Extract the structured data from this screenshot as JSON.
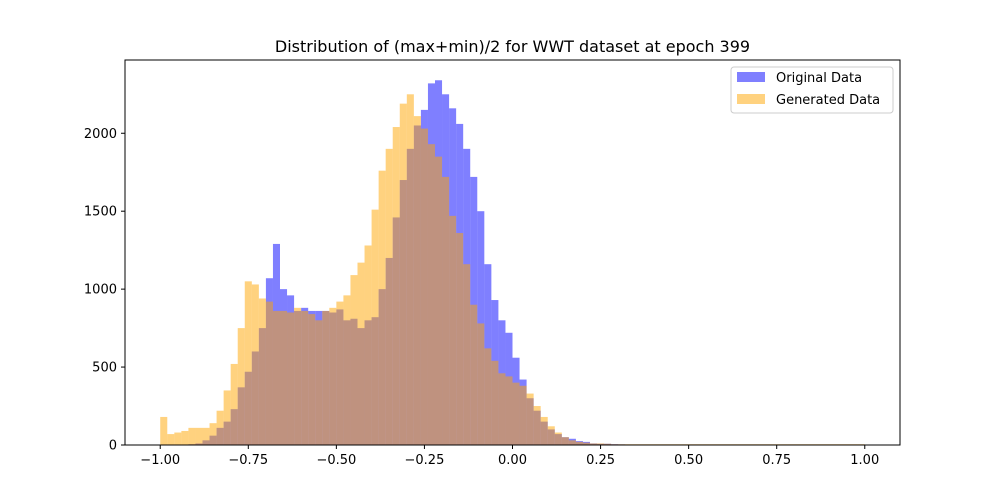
{
  "chart_data": {
    "type": "histogram",
    "title": "Distribution of (max+min)/2 for WWT dataset at epoch 399",
    "xlabel": "",
    "ylabel": "",
    "xlim": [
      -1.1,
      1.1
    ],
    "ylim": [
      0,
      2470
    ],
    "grid": false,
    "legend_position": "top-right",
    "x_ticks": [
      -1.0,
      -0.75,
      -0.5,
      -0.25,
      0.0,
      0.25,
      0.5,
      0.75,
      1.0
    ],
    "x_tick_labels": [
      "−1.00",
      "−0.75",
      "−0.50",
      "−0.25",
      "0.00",
      "0.25",
      "0.50",
      "0.75",
      "1.00"
    ],
    "y_ticks": [
      0,
      500,
      1000,
      1500,
      2000
    ],
    "y_tick_labels": [
      "0",
      "500",
      "1000",
      "1500",
      "2000"
    ],
    "bin_start": -1.0,
    "bin_width": 0.02,
    "series": [
      {
        "name": "Original Data",
        "color": "#0000ff",
        "opacity": 0.5,
        "values": [
          0,
          0,
          0,
          0,
          5,
          10,
          30,
          60,
          110,
          150,
          230,
          370,
          470,
          600,
          750,
          1070,
          1290,
          1000,
          960,
          860,
          880,
          860,
          860,
          860,
          850,
          870,
          800,
          810,
          750,
          800,
          820,
          1000,
          1200,
          1460,
          1700,
          1900,
          2050,
          2150,
          2320,
          2340,
          2250,
          2160,
          2060,
          1900,
          1720,
          1500,
          1160,
          930,
          800,
          720,
          560,
          420,
          300,
          220,
          150,
          100,
          70,
          50,
          40,
          25,
          20,
          10,
          8,
          8,
          5,
          4,
          3,
          3,
          2,
          2,
          2,
          2,
          2,
          2,
          2,
          1,
          1,
          1,
          1,
          1,
          1,
          1,
          1,
          1,
          1,
          1,
          1,
          1,
          1,
          1,
          1,
          1,
          1,
          1,
          1,
          1,
          1,
          1,
          1,
          1
        ]
      },
      {
        "name": "Generated Data",
        "color": "#ffa500",
        "opacity": 0.5,
        "values": [
          180,
          70,
          80,
          90,
          110,
          110,
          110,
          140,
          220,
          350,
          520,
          750,
          1050,
          1030,
          940,
          920,
          860,
          860,
          850,
          880,
          860,
          840,
          800,
          860,
          880,
          920,
          960,
          1090,
          1170,
          1280,
          1510,
          1760,
          1900,
          2040,
          2190,
          2250,
          2110,
          2030,
          1930,
          1850,
          1720,
          1470,
          1360,
          1160,
          900,
          780,
          620,
          540,
          460,
          440,
          400,
          380,
          330,
          250,
          180,
          120,
          80,
          50,
          30,
          20,
          15,
          10,
          10,
          8,
          5,
          5,
          5,
          5,
          5,
          5,
          5,
          5,
          5,
          5,
          5,
          5,
          5,
          5,
          5,
          5,
          5,
          5,
          5,
          5,
          5,
          5,
          5,
          5,
          5,
          5,
          5,
          5,
          5,
          5,
          5,
          5,
          5,
          5,
          5,
          5
        ]
      }
    ]
  }
}
